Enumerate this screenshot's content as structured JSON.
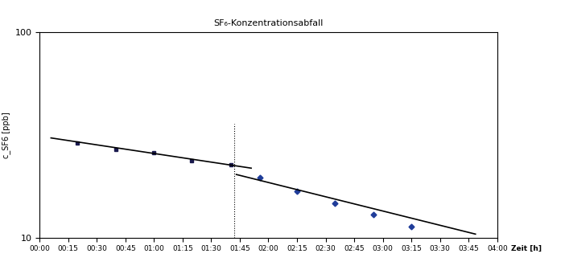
{
  "chart_data": {
    "type": "scatter",
    "title": "SF₆-Konzentrationsabfall",
    "y_label": "c_SF6 [ppb]",
    "x_label": "Zeit [h]",
    "log": "y",
    "grid": "y",
    "xlim": [
      0,
      4
    ],
    "xticks": [
      {
        "value": 0,
        "label": "00:00"
      },
      {
        "value": 0.25,
        "label": "00:15"
      },
      {
        "value": 0.5,
        "label": "00:30"
      },
      {
        "value": 0.75,
        "label": "00:45"
      },
      {
        "value": 1,
        "label": "01:00"
      },
      {
        "value": 1.25,
        "label": "01:15"
      },
      {
        "value": 1.5,
        "label": "01:30"
      },
      {
        "value": 1.75,
        "label": "01:45"
      },
      {
        "value": 2,
        "label": "02:00"
      },
      {
        "value": 2.25,
        "label": "02:15"
      },
      {
        "value": 2.5,
        "label": "02:30"
      },
      {
        "value": 2.75,
        "label": "02:45"
      },
      {
        "value": 3,
        "label": "03:00"
      },
      {
        "value": 3.25,
        "label": "03:15"
      },
      {
        "value": 3.5,
        "label": "03:30"
      },
      {
        "value": 3.75,
        "label": "03:45"
      },
      {
        "value": 4,
        "label": "04:00"
      }
    ],
    "ylim": [
      10,
      100
    ],
    "yticks": [
      10,
      100
    ],
    "series": [
      {
        "type": "scatter",
        "color": "#1a1a4e",
        "marker": "square",
        "x": [
          0.33,
          0.67,
          1.0,
          1.33,
          1.67
        ],
        "values": [
          29.0,
          27.0,
          26.0,
          23.6,
          22.6
        ]
      },
      {
        "type": "scatter",
        "color": "#1f3c99",
        "marker": "diamond",
        "x": [
          1.93,
          2.25,
          2.58,
          2.92,
          3.25
        ],
        "values": [
          19.6,
          16.8,
          14.7,
          13.0,
          11.3
        ]
      },
      {
        "type": "line",
        "color": "#000000",
        "line_style": "solid",
        "x": [
          0.1,
          1.85
        ],
        "values": [
          30.6,
          21.8
        ]
      },
      {
        "type": "line",
        "color": "#000000",
        "line_style": "solid",
        "x": [
          1.72,
          3.81
        ],
        "values": [
          20.3,
          10.4
        ]
      }
    ],
    "vline": {
      "x": 1.7,
      "ymax": 36,
      "line_style": "dotted",
      "color": "#000000"
    }
  }
}
